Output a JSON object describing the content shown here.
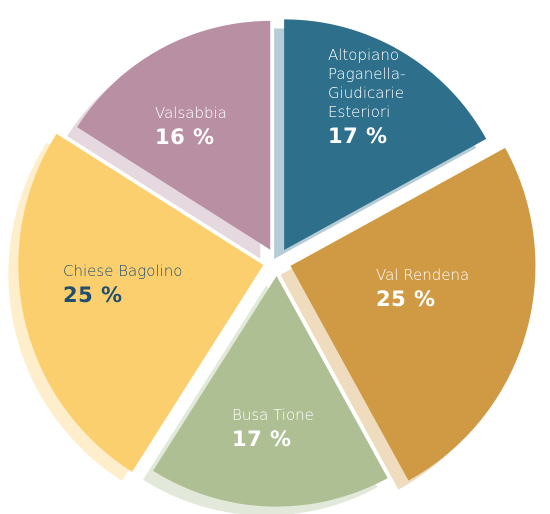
{
  "chart_data": {
    "type": "pie",
    "categories": [
      "Altopiano Paganella-Giudicarie Esteriori",
      "Val Rendena",
      "Busa Tione",
      "Chiese Bagolino",
      "Valsabbia"
    ],
    "values": [
      17,
      25,
      17,
      25,
      16
    ],
    "value_labels": [
      "17 %",
      "25 %",
      "17 %",
      "25 %",
      "16 %"
    ],
    "colors": [
      "#2e6f8c",
      "#d09a45",
      "#afbf94",
      "#fccf6e",
      "#b88fa3"
    ]
  }
}
